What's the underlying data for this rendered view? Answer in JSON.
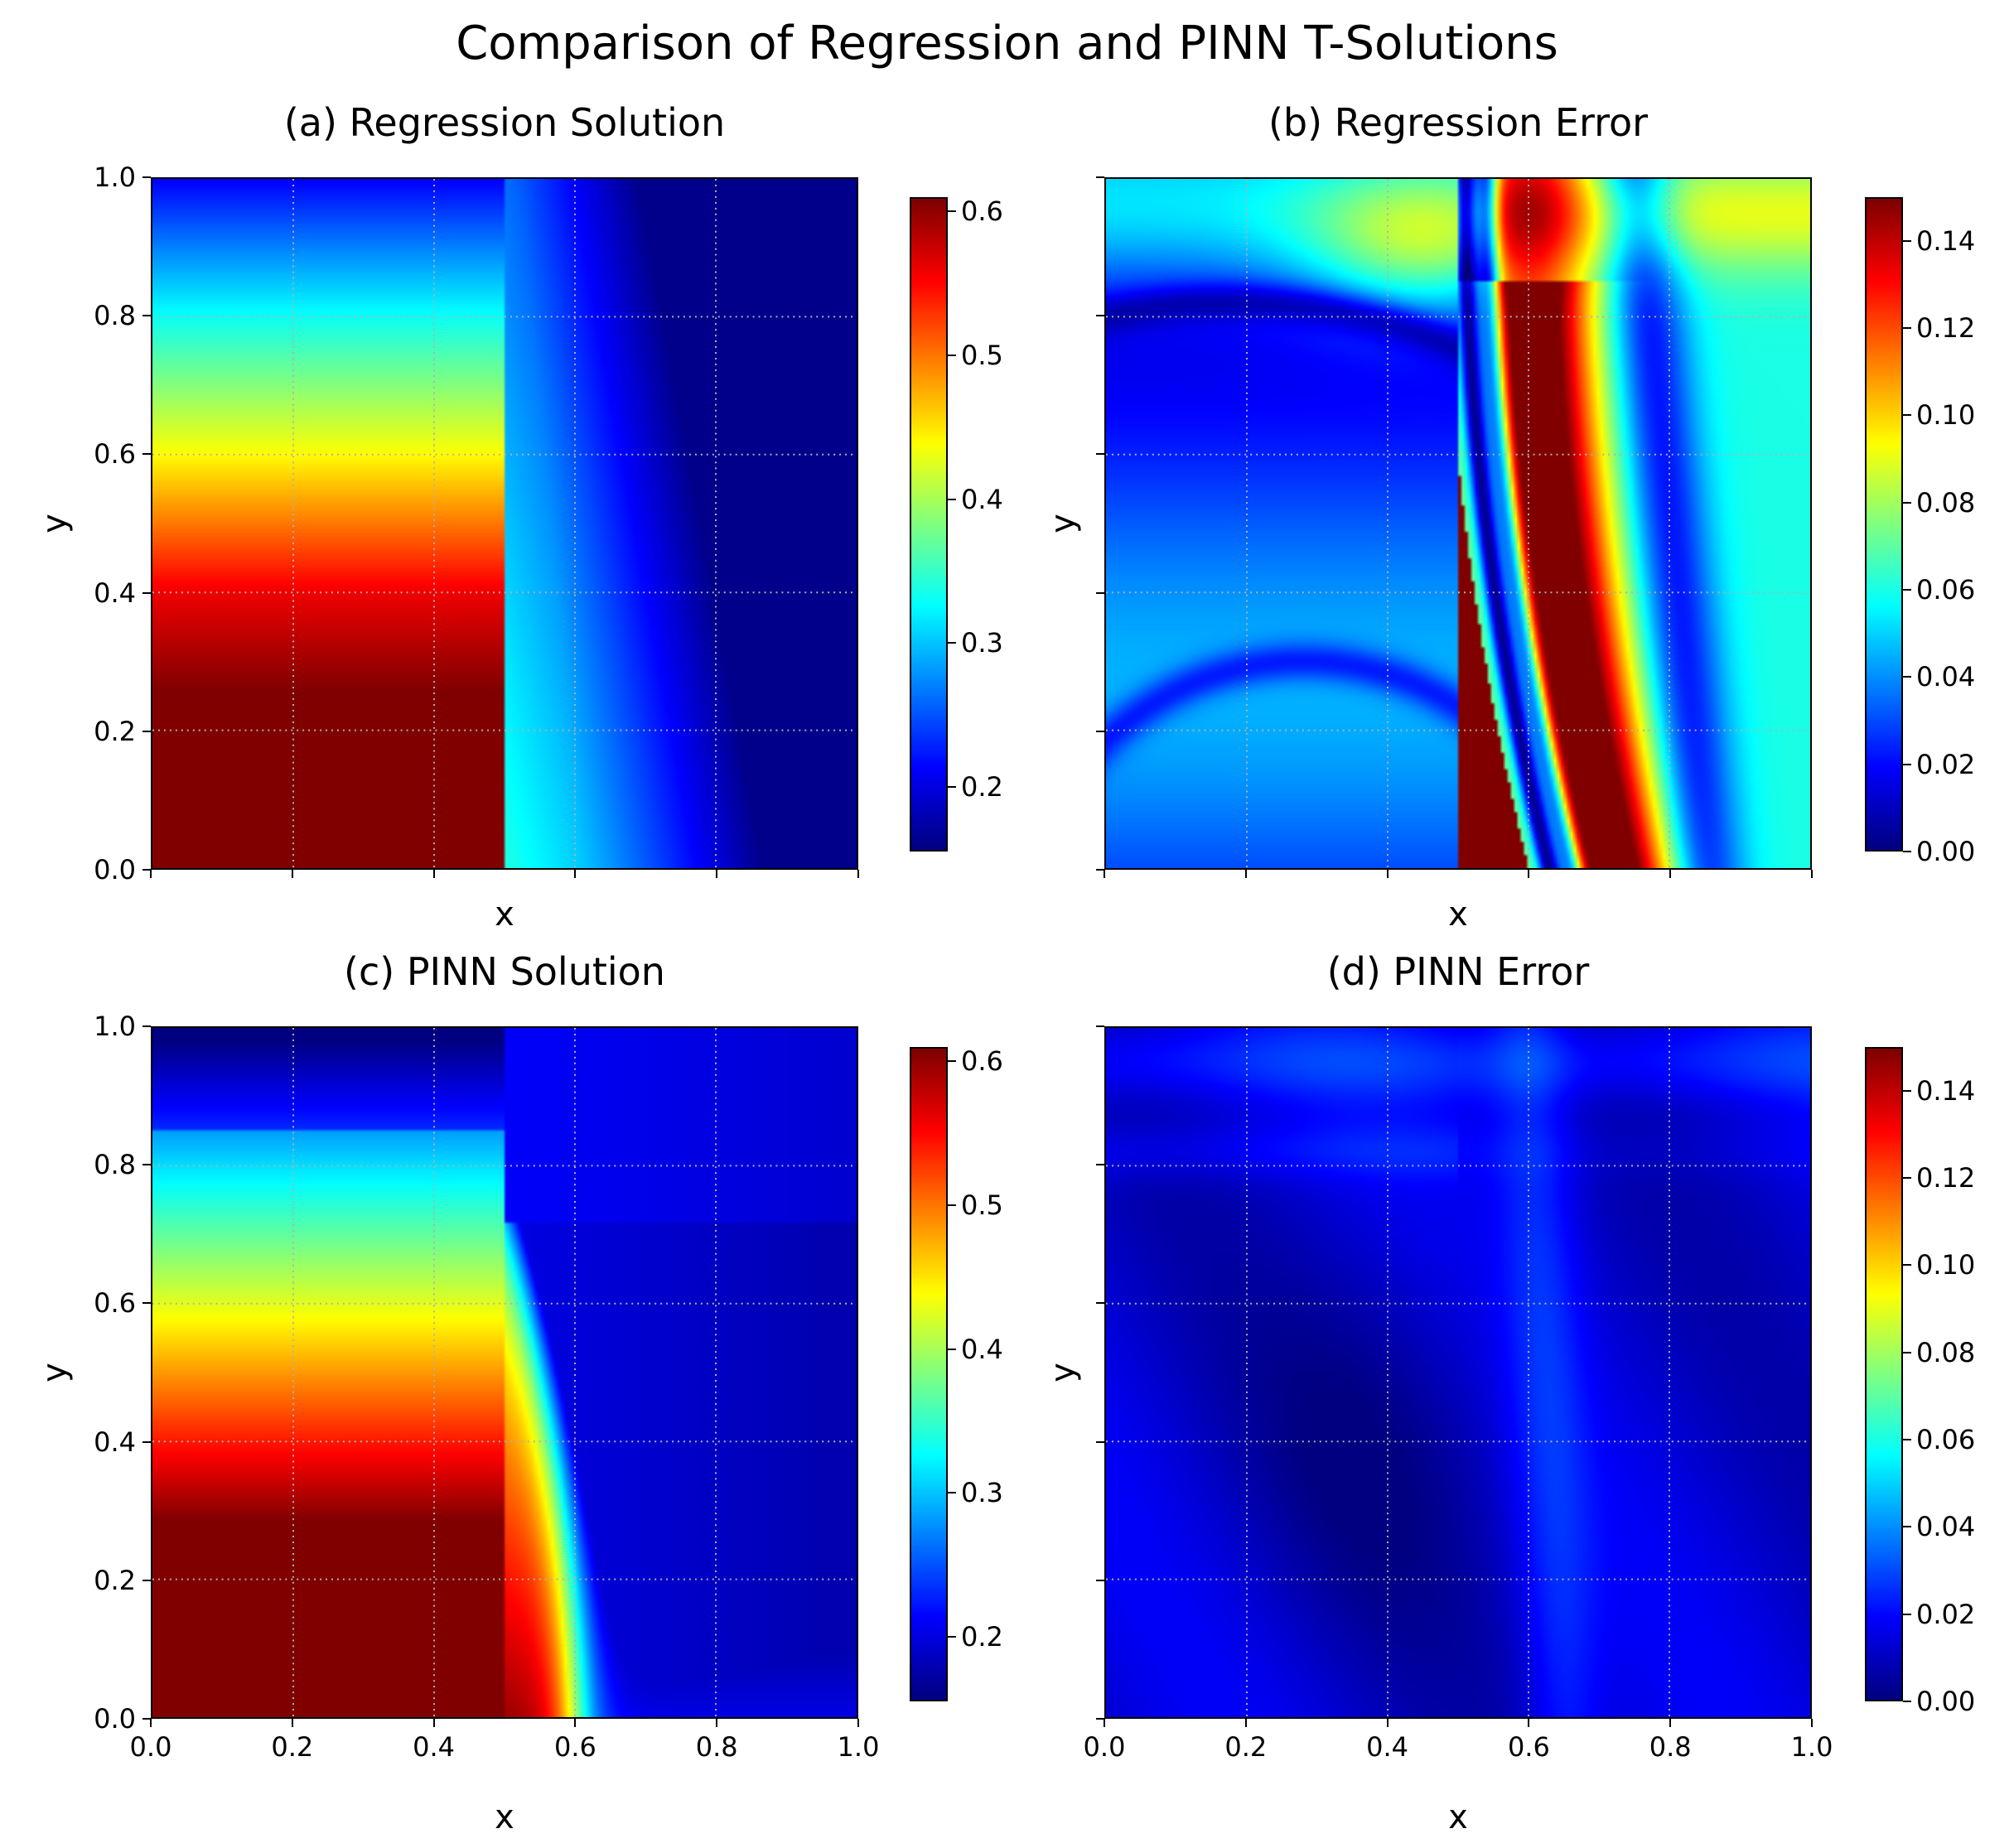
{
  "title": "Comparison of Regression and PINN T-Solutions",
  "chart_data": [
    {
      "type": "heatmap",
      "id": "a",
      "title": "(a) Regression Solution",
      "xlabel": "x",
      "ylabel": "y",
      "xlim": [
        0,
        1
      ],
      "ylim": [
        0,
        1
      ],
      "x_ticks": [
        "0.0",
        "0.2",
        "0.4",
        "0.6",
        "0.8",
        "1.0"
      ],
      "y_ticks": [
        "0.0",
        "0.2",
        "0.4",
        "0.6",
        "0.8",
        "1.0"
      ],
      "show_x_tick_labels": false,
      "show_y_tick_labels": true,
      "colormap": "jet",
      "clim": [
        0.155,
        0.61
      ],
      "colorbar_ticks": [
        "0.2",
        "0.3",
        "0.4",
        "0.5",
        "0.6"
      ],
      "colorbar_values": [
        0.2,
        0.3,
        0.4,
        0.5,
        0.6
      ],
      "grid": true,
      "interface_x": 0.5
    },
    {
      "type": "heatmap",
      "id": "b",
      "title": "(b) Regression Error",
      "xlabel": "x",
      "ylabel": "y",
      "xlim": [
        0,
        1
      ],
      "ylim": [
        0,
        1
      ],
      "x_ticks": [
        "0.0",
        "0.2",
        "0.4",
        "0.6",
        "0.8",
        "1.0"
      ],
      "y_ticks": [
        "0.0",
        "0.2",
        "0.4",
        "0.6",
        "0.8",
        "1.0"
      ],
      "show_x_tick_labels": false,
      "show_y_tick_labels": false,
      "colormap": "jet",
      "clim": [
        0,
        0.15
      ],
      "colorbar_ticks": [
        "0.00",
        "0.02",
        "0.04",
        "0.06",
        "0.08",
        "0.10",
        "0.12",
        "0.14"
      ],
      "colorbar_values": [
        0,
        0.02,
        0.04,
        0.06,
        0.08,
        0.1,
        0.12,
        0.14
      ],
      "grid": true,
      "interface_x": 0.5
    },
    {
      "type": "heatmap",
      "id": "c",
      "title": "(c) PINN Solution",
      "xlabel": "x",
      "ylabel": "y",
      "xlim": [
        0,
        1
      ],
      "ylim": [
        0,
        1
      ],
      "x_ticks": [
        "0.0",
        "0.2",
        "0.4",
        "0.6",
        "0.8",
        "1.0"
      ],
      "y_ticks": [
        "0.0",
        "0.2",
        "0.4",
        "0.6",
        "0.8",
        "1.0"
      ],
      "show_x_tick_labels": true,
      "show_y_tick_labels": true,
      "colormap": "jet",
      "clim": [
        0.155,
        0.61
      ],
      "colorbar_ticks": [
        "0.2",
        "0.3",
        "0.4",
        "0.5",
        "0.6"
      ],
      "colorbar_values": [
        0.2,
        0.3,
        0.4,
        0.5,
        0.6
      ],
      "grid": true,
      "interface_x": 0.5
    },
    {
      "type": "heatmap",
      "id": "d",
      "title": "(d) PINN Error",
      "xlabel": "x",
      "ylabel": "y",
      "xlim": [
        0,
        1
      ],
      "ylim": [
        0,
        1
      ],
      "x_ticks": [
        "0.0",
        "0.2",
        "0.4",
        "0.6",
        "0.8",
        "1.0"
      ],
      "y_ticks": [
        "0.0",
        "0.2",
        "0.4",
        "0.6",
        "0.8",
        "1.0"
      ],
      "show_x_tick_labels": true,
      "show_y_tick_labels": false,
      "colormap": "jet",
      "clim": [
        0,
        0.15
      ],
      "colorbar_ticks": [
        "0.00",
        "0.02",
        "0.04",
        "0.06",
        "0.08",
        "0.10",
        "0.12",
        "0.14"
      ],
      "colorbar_values": [
        0,
        0.02,
        0.04,
        0.06,
        0.08,
        0.1,
        0.12,
        0.14
      ],
      "grid": true,
      "interface_x": 0.5
    }
  ]
}
